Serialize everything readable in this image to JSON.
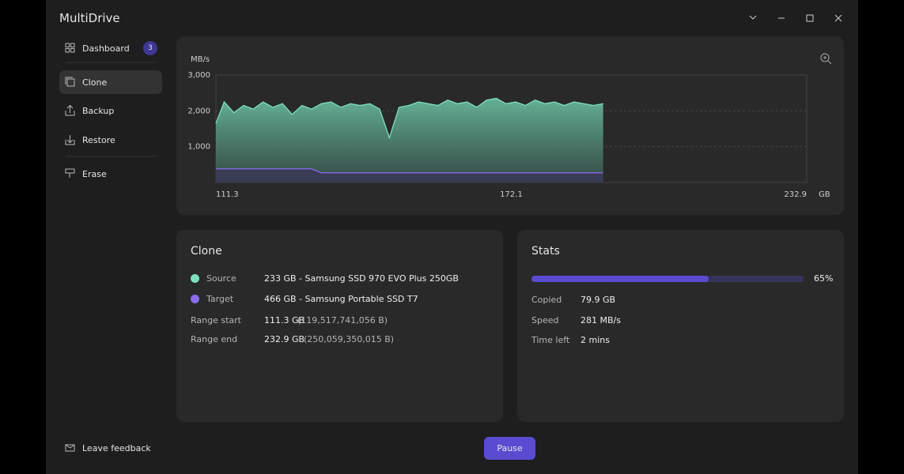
{
  "app": {
    "title": "MultiDrive"
  },
  "nav": {
    "items": [
      {
        "label": "Dashboard",
        "badge": "3"
      },
      {
        "label": "Clone"
      },
      {
        "label": "Backup"
      },
      {
        "label": "Restore"
      },
      {
        "label": "Erase"
      }
    ],
    "feedback": "Leave feedback"
  },
  "chart_data": {
    "type": "area",
    "y_label": "MB/s",
    "x_unit": "GB",
    "x": [
      111.3,
      113,
      115,
      117,
      119,
      121,
      123,
      125,
      127,
      129,
      131,
      133,
      135,
      137,
      139,
      141,
      143,
      145,
      147,
      149,
      151,
      153,
      155,
      157,
      159,
      161,
      163,
      165,
      167,
      169,
      171,
      173,
      175,
      177,
      179,
      181,
      183,
      185,
      187,
      189,
      191
    ],
    "series": [
      {
        "name": "Source",
        "color": "#7de0c0",
        "values": [
          1650,
          2250,
          1950,
          2150,
          2050,
          2250,
          2100,
          2200,
          1900,
          2150,
          2050,
          2200,
          2250,
          2100,
          2200,
          2150,
          2200,
          2050,
          1250,
          2100,
          2150,
          2250,
          2200,
          2150,
          2300,
          2200,
          2250,
          2100,
          2300,
          2350,
          2200,
          2250,
          2150,
          2300,
          2200,
          2250,
          2150,
          2250,
          2200,
          2150,
          2200
        ]
      },
      {
        "name": "Target",
        "color": "#8b6cf0",
        "values": [
          380,
          380,
          380,
          380,
          380,
          380,
          380,
          380,
          380,
          380,
          380,
          270,
          270,
          270,
          270,
          270,
          270,
          270,
          270,
          270,
          270,
          270,
          270,
          270,
          270,
          270,
          270,
          270,
          270,
          270,
          270,
          270,
          270,
          270,
          270,
          270,
          270,
          270,
          270,
          270,
          270
        ]
      }
    ],
    "xlim": [
      111.3,
      232.9
    ],
    "xticks": [
      111.3,
      172.1,
      232.9
    ],
    "ylim": [
      0,
      3000
    ],
    "yticks": [
      {
        "value": 1000,
        "label": "1,000"
      },
      {
        "value": 2000,
        "label": "2,000"
      },
      {
        "value": 3000,
        "label": "3,000"
      }
    ],
    "grid": true
  },
  "clone": {
    "title": "Clone",
    "source": "233 GB - Samsung SSD 970 EVO Plus 250GB",
    "target": "466 GB - Samsung Portable SSD T7",
    "range_start": {
      "label": "Range start",
      "value": "111.3 GB",
      "bytes": "(119,517,741,056 B)"
    },
    "range_end": {
      "label": "Range end",
      "value": "232.9 GB",
      "bytes": "(250,059,350,015 B)"
    }
  },
  "stats": {
    "title": "Stats",
    "progress": 65,
    "progress_label": "65%",
    "rows": [
      {
        "label": "Copied",
        "value": "79.9 GB"
      },
      {
        "label": "Speed",
        "value": "281 MB/s"
      },
      {
        "label": "Time left",
        "value": "2 mins"
      }
    ]
  },
  "button": "Pause"
}
